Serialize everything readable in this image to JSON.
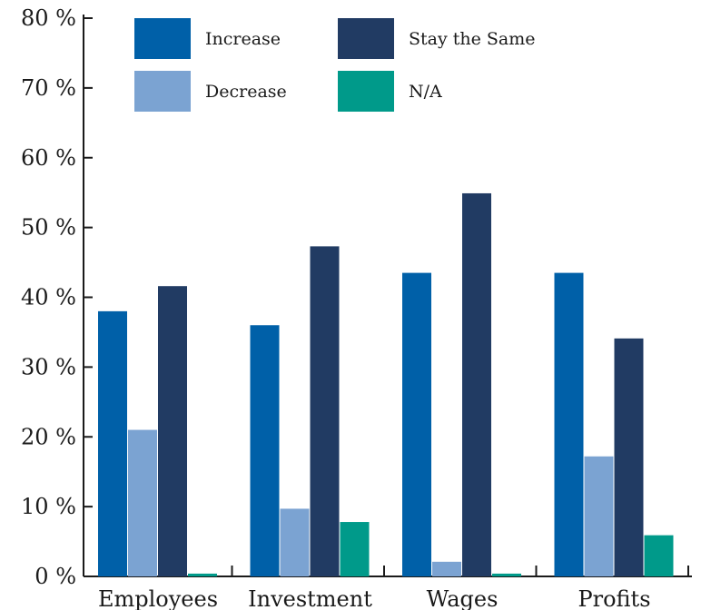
{
  "chart_data": {
    "type": "bar",
    "title": "",
    "xlabel": "",
    "ylabel": "",
    "categories": [
      "Employees",
      "Investment",
      "Wages",
      "Profits"
    ],
    "ylim": [
      0,
      80
    ],
    "yticks": [
      0,
      10,
      20,
      30,
      40,
      50,
      60,
      70,
      80
    ],
    "ytick_labels": [
      "0 %",
      "10 %",
      "20 %",
      "30 %",
      "40 %",
      "50 %",
      "60 %",
      "70 %",
      "80 %"
    ],
    "grid": false,
    "legend_position": "top",
    "series": [
      {
        "name": "Increase",
        "color": "#0060a8",
        "values": [
          38,
          36,
          43.5,
          43.5
        ]
      },
      {
        "name": "Decrease",
        "color": "#7ba3d2",
        "values": [
          21,
          9.7,
          2.1,
          17.2
        ]
      },
      {
        "name": "Stay the Same",
        "color": "#213b63",
        "values": [
          41.6,
          47.3,
          54.9,
          34.1
        ]
      },
      {
        "name": "N/A",
        "color": "#009a8a",
        "values": [
          0.4,
          7.8,
          0.4,
          5.9
        ]
      }
    ]
  }
}
